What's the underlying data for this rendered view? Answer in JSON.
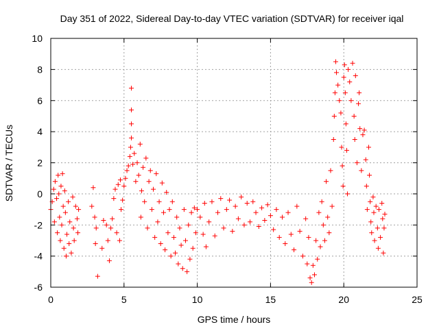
{
  "chart_data": {
    "type": "scatter",
    "title": "Day 351 of 2022, Sidereal Day-to-day VTEC variation (SDTVAR) for receiver iqal",
    "xlabel": "GPS time / hours",
    "ylabel": "SDTVAR / TECUs",
    "xlim": [
      0,
      25
    ],
    "ylim": [
      -6,
      10
    ],
    "xticks": [
      0,
      5,
      10,
      15,
      20,
      25
    ],
    "yticks": [
      -6,
      -4,
      -2,
      0,
      2,
      4,
      6,
      8,
      10
    ],
    "grid": true,
    "marker": "+",
    "color": "#ff0000",
    "legend": "none",
    "series": [
      {
        "name": "SDTVAR",
        "points": [
          [
            0.0,
            -1.0
          ],
          [
            0.1,
            -0.5
          ],
          [
            0.2,
            0.3
          ],
          [
            0.25,
            -1.8
          ],
          [
            0.3,
            0.8
          ],
          [
            0.4,
            -0.3
          ],
          [
            0.45,
            -2.5
          ],
          [
            0.5,
            1.2
          ],
          [
            0.55,
            0.0
          ],
          [
            0.6,
            -1.5
          ],
          [
            0.65,
            -3.0
          ],
          [
            0.7,
            0.5
          ],
          [
            0.75,
            -2.0
          ],
          [
            0.8,
            1.3
          ],
          [
            0.85,
            -0.8
          ],
          [
            0.9,
            -3.5
          ],
          [
            0.95,
            0.2
          ],
          [
            1.0,
            -1.2
          ],
          [
            1.05,
            -4.0
          ],
          [
            1.1,
            -2.6
          ],
          [
            1.2,
            -0.5
          ],
          [
            1.25,
            -3.2
          ],
          [
            1.3,
            -1.8
          ],
          [
            1.4,
            -3.8
          ],
          [
            1.5,
            -0.2
          ],
          [
            1.55,
            -2.2
          ],
          [
            1.6,
            -3.0
          ],
          [
            1.7,
            -0.8
          ],
          [
            1.8,
            -1.6
          ],
          [
            1.85,
            -2.5
          ],
          [
            1.9,
            -1.0
          ],
          [
            2.8,
            -0.8
          ],
          [
            2.9,
            0.4
          ],
          [
            3.0,
            -1.5
          ],
          [
            3.05,
            -3.2
          ],
          [
            3.1,
            -2.2
          ],
          [
            3.2,
            -5.3
          ],
          [
            3.5,
            -3.5
          ],
          [
            3.6,
            -1.7
          ],
          [
            3.8,
            -2.0
          ],
          [
            3.9,
            -3.0
          ],
          [
            4.0,
            -4.3
          ],
          [
            4.1,
            -2.2
          ],
          [
            4.2,
            -1.6
          ],
          [
            4.3,
            -0.3
          ],
          [
            4.4,
            0.3
          ],
          [
            4.5,
            -2.5
          ],
          [
            4.6,
            0.6
          ],
          [
            4.7,
            -3.0
          ],
          [
            4.75,
            0.9
          ],
          [
            4.8,
            -1.0
          ],
          [
            4.9,
            -0.4
          ],
          [
            5.0,
            0.5
          ],
          [
            5.1,
            1.0
          ],
          [
            5.2,
            1.5
          ],
          [
            5.3,
            1.8
          ],
          [
            5.4,
            2.4
          ],
          [
            5.45,
            3.0
          ],
          [
            5.5,
            3.6
          ],
          [
            5.5,
            4.5
          ],
          [
            5.5,
            5.4
          ],
          [
            5.5,
            6.8
          ],
          [
            5.6,
            1.9
          ],
          [
            5.7,
            2.6
          ],
          [
            5.8,
            0.8
          ],
          [
            5.9,
            2.0
          ],
          [
            6.0,
            1.2
          ],
          [
            6.1,
            3.2
          ],
          [
            6.15,
            -1.5
          ],
          [
            6.2,
            0.2
          ],
          [
            6.3,
            1.7
          ],
          [
            6.4,
            -0.5
          ],
          [
            6.5,
            2.3
          ],
          [
            6.6,
            -2.2
          ],
          [
            6.7,
            0.8
          ],
          [
            6.8,
            1.5
          ],
          [
            6.9,
            -1.0
          ],
          [
            7.0,
            0.3
          ],
          [
            7.1,
            -2.8
          ],
          [
            7.2,
            1.3
          ],
          [
            7.3,
            -1.8
          ],
          [
            7.4,
            -0.5
          ],
          [
            7.5,
            -3.2
          ],
          [
            7.6,
            0.7
          ],
          [
            7.7,
            -1.2
          ],
          [
            7.8,
            -3.6
          ],
          [
            7.9,
            0.1
          ],
          [
            8.0,
            -2.5
          ],
          [
            8.1,
            -1.0
          ],
          [
            8.2,
            -4.0
          ],
          [
            8.3,
            -0.5
          ],
          [
            8.4,
            -2.8
          ],
          [
            8.5,
            -3.8
          ],
          [
            8.6,
            -1.5
          ],
          [
            8.7,
            -4.5
          ],
          [
            8.8,
            -2.2
          ],
          [
            8.9,
            -3.3
          ],
          [
            9.0,
            -4.8
          ],
          [
            9.1,
            -1.0
          ],
          [
            9.2,
            -3.0
          ],
          [
            9.3,
            -5.0
          ],
          [
            9.4,
            -2.0
          ],
          [
            9.5,
            -4.2
          ],
          [
            9.6,
            -1.2
          ],
          [
            9.7,
            -3.5
          ],
          [
            9.8,
            -0.9
          ],
          [
            9.9,
            -2.5
          ],
          [
            10.0,
            -1.0
          ],
          [
            10.2,
            -1.5
          ],
          [
            10.4,
            -2.6
          ],
          [
            10.5,
            -0.6
          ],
          [
            10.6,
            -3.4
          ],
          [
            10.8,
            -1.8
          ],
          [
            11.0,
            -0.5
          ],
          [
            11.2,
            -2.7
          ],
          [
            11.4,
            -1.2
          ],
          [
            11.6,
            -0.3
          ],
          [
            11.8,
            -2.2
          ],
          [
            12.0,
            -1.0
          ],
          [
            12.2,
            -0.4
          ],
          [
            12.4,
            -2.4
          ],
          [
            12.6,
            -0.8
          ],
          [
            12.8,
            -1.6
          ],
          [
            13.0,
            -0.2
          ],
          [
            13.2,
            -2.0
          ],
          [
            13.4,
            -0.6
          ],
          [
            13.6,
            -1.8
          ],
          [
            13.8,
            -0.5
          ],
          [
            14.0,
            -1.2
          ],
          [
            14.2,
            -2.1
          ],
          [
            14.4,
            -0.9
          ],
          [
            14.6,
            -1.7
          ],
          [
            14.8,
            -0.7
          ],
          [
            15.0,
            -1.4
          ],
          [
            15.2,
            -2.3
          ],
          [
            15.4,
            -1.0
          ],
          [
            15.6,
            -2.8
          ],
          [
            15.8,
            -1.5
          ],
          [
            16.0,
            -3.2
          ],
          [
            16.2,
            -1.2
          ],
          [
            16.4,
            -2.6
          ],
          [
            16.6,
            -3.6
          ],
          [
            16.8,
            -0.8
          ],
          [
            17.0,
            -2.4
          ],
          [
            17.2,
            -4.0
          ],
          [
            17.4,
            -1.6
          ],
          [
            17.5,
            -4.5
          ],
          [
            17.6,
            -2.8
          ],
          [
            17.7,
            -5.4
          ],
          [
            17.8,
            -5.7
          ],
          [
            17.9,
            -4.6
          ],
          [
            18.0,
            -5.2
          ],
          [
            18.1,
            -3.0
          ],
          [
            18.2,
            -4.2
          ],
          [
            18.3,
            -1.2
          ],
          [
            18.4,
            -3.4
          ],
          [
            18.5,
            -0.5
          ],
          [
            18.6,
            -2.0
          ],
          [
            18.7,
            -3.0
          ],
          [
            18.8,
            0.8
          ],
          [
            18.9,
            -1.5
          ],
          [
            19.0,
            -2.5
          ],
          [
            19.1,
            1.5
          ],
          [
            19.2,
            -0.8
          ],
          [
            19.3,
            3.5
          ],
          [
            19.35,
            5.0
          ],
          [
            19.4,
            6.5
          ],
          [
            19.45,
            8.5
          ],
          [
            19.5,
            7.8
          ],
          [
            19.6,
            7.0
          ],
          [
            19.7,
            6.0
          ],
          [
            19.8,
            5.2
          ],
          [
            19.85,
            3.0
          ],
          [
            19.9,
            1.8
          ],
          [
            19.95,
            0.5
          ],
          [
            20.0,
            7.5
          ],
          [
            20.05,
            8.3
          ],
          [
            20.1,
            6.5
          ],
          [
            20.15,
            4.5
          ],
          [
            20.2,
            2.8
          ],
          [
            20.25,
            0.0
          ],
          [
            20.3,
            8.0
          ],
          [
            20.4,
            7.2
          ],
          [
            20.5,
            6.0
          ],
          [
            20.6,
            8.4
          ],
          [
            20.7,
            5.0
          ],
          [
            20.75,
            3.5
          ],
          [
            20.8,
            7.6
          ],
          [
            20.9,
            2.0
          ],
          [
            21.0,
            5.8
          ],
          [
            21.05,
            6.5
          ],
          [
            21.1,
            4.2
          ],
          [
            21.2,
            1.5
          ],
          [
            21.3,
            3.8
          ],
          [
            21.4,
            4.1
          ],
          [
            21.5,
            2.2
          ],
          [
            21.55,
            0.5
          ],
          [
            21.6,
            -1.0
          ],
          [
            21.7,
            3.0
          ],
          [
            21.75,
            1.2
          ],
          [
            21.8,
            -0.5
          ],
          [
            21.85,
            -1.8
          ],
          [
            21.9,
            -2.5
          ],
          [
            22.0,
            -0.2
          ],
          [
            22.05,
            -1.2
          ],
          [
            22.1,
            -3.0
          ],
          [
            22.2,
            -0.8
          ],
          [
            22.3,
            -2.2
          ],
          [
            22.35,
            -3.5
          ],
          [
            22.4,
            -1.0
          ],
          [
            22.5,
            -2.8
          ],
          [
            22.6,
            -0.6
          ],
          [
            22.65,
            -1.6
          ],
          [
            22.7,
            -3.8
          ],
          [
            22.75,
            -2.2
          ],
          [
            22.8,
            -1.3
          ]
        ]
      }
    ]
  }
}
